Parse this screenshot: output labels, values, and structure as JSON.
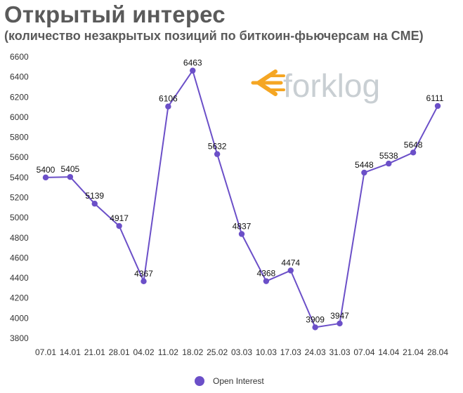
{
  "chart_data": {
    "type": "line",
    "title": "Открытый интерес",
    "subtitle": "(количество незакрытых позиций по биткоин-фьючерсам на CME)",
    "categories": [
      "07.01",
      "14.01",
      "21.01",
      "28.01",
      "04.02",
      "11.02",
      "18.02",
      "25.02",
      "03.03",
      "10.03",
      "17.03",
      "24.03",
      "31.03",
      "07.04",
      "14.04",
      "21.04",
      "28.04"
    ],
    "series": [
      {
        "name": "Open Interest",
        "values": [
          5400,
          5405,
          5139,
          4917,
          4367,
          6106,
          6463,
          5632,
          4837,
          4368,
          4474,
          3909,
          3947,
          5448,
          5538,
          5648,
          6111
        ],
        "color": "#6b4fc8"
      }
    ],
    "yticks": [
      3800,
      4000,
      4200,
      4400,
      4600,
      4800,
      5000,
      5200,
      5400,
      5600,
      5800,
      6000,
      6200,
      6400,
      6600
    ],
    "ylim": [
      3800,
      6600
    ],
    "grid": false,
    "legend_position": "bottom",
    "watermark": {
      "text": "forklog",
      "brand_color": "#f5a623",
      "text_color": "#c9cfd3"
    }
  }
}
